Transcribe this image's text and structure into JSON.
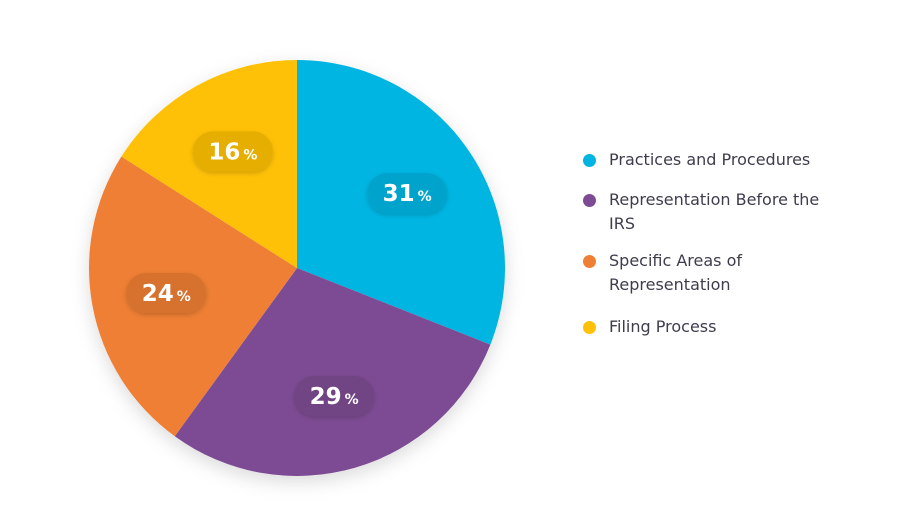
{
  "chart_data": {
    "type": "pie",
    "title": "",
    "unit_suffix": "%",
    "slices": [
      {
        "label": "Practices and Procedures",
        "value": 31,
        "color": "#00b5e2"
      },
      {
        "label": "Representation Before the IRS",
        "value": 29,
        "color": "#7d4b93"
      },
      {
        "label": "Specific Areas of Representation",
        "value": 24,
        "color": "#ee7f34"
      },
      {
        "label": "Filing Process",
        "value": 16,
        "color": "#ffc107"
      }
    ],
    "start_angle_deg": 0,
    "direction": "clockwise",
    "legend_position": "right"
  }
}
